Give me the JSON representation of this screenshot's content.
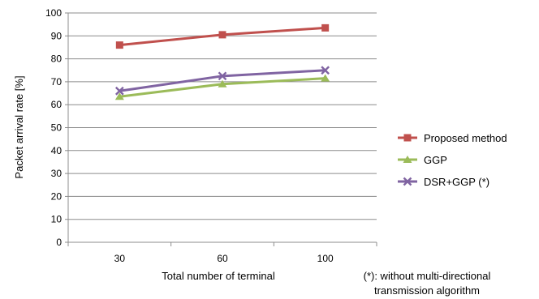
{
  "chart_data": {
    "type": "line",
    "categories": [
      "30",
      "60",
      "100"
    ],
    "series": [
      {
        "name": "Proposed method",
        "values": [
          86,
          90.5,
          93.5
        ],
        "color": "#c0504d",
        "marker": "square"
      },
      {
        "name": "GGP",
        "values": [
          63.5,
          69,
          71.5
        ],
        "color": "#9bbb59",
        "marker": "triangle"
      },
      {
        "name": "DSR+GGP (*)",
        "values": [
          66,
          72.5,
          75
        ],
        "color": "#8064a2",
        "marker": "x"
      }
    ],
    "xlabel": "Total number of terminal",
    "ylabel": "Packet arrival rate [%]",
    "ylim": [
      0,
      100
    ],
    "yticks": [
      0,
      10,
      20,
      30,
      40,
      50,
      60,
      70,
      80,
      90,
      100
    ],
    "grid": true,
    "legend_position": "right",
    "note_line1": "(*): without multi-directional",
    "note_line2": "transmission algorithm"
  }
}
